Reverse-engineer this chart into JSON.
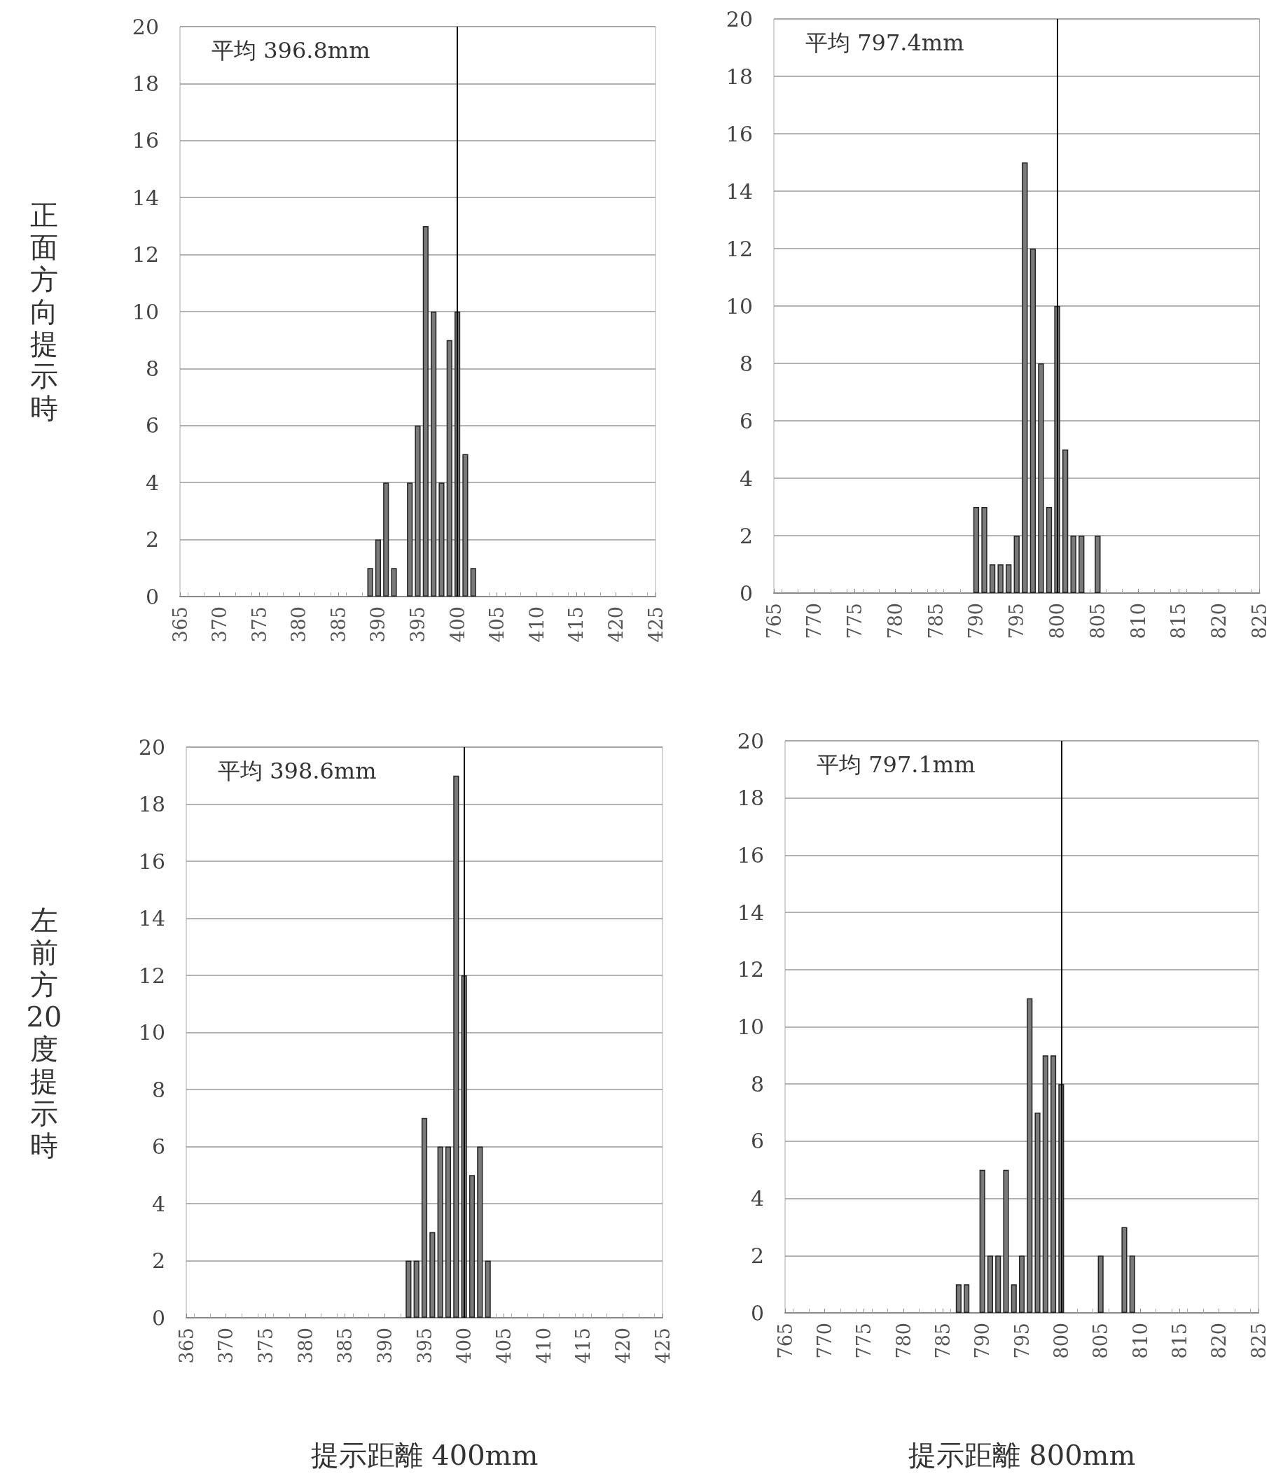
{
  "chart_data": [
    {
      "type": "bar",
      "ylabel": "正面方向提示時",
      "annotations": [
        "平均 396.8mm"
      ],
      "x": [
        389,
        390,
        391,
        392,
        394,
        395,
        396,
        397,
        398,
        399,
        400,
        401,
        402
      ],
      "series": [
        {
          "color": "#7a7a7a",
          "values": [
            1,
            2,
            4,
            1,
            4,
            6,
            13,
            10,
            4,
            9,
            10,
            5,
            1
          ]
        }
      ],
      "xlim": [
        365,
        425
      ],
      "xticks": [
        365,
        370,
        375,
        380,
        385,
        390,
        395,
        400,
        405,
        410,
        415,
        420,
        425
      ],
      "ylim": [
        0,
        20
      ],
      "yticks": [
        0,
        2,
        4,
        6,
        8,
        10,
        12,
        14,
        16,
        18,
        20
      ],
      "grid": "y",
      "ref_lines": [
        {
          "axis": "x",
          "value": 400,
          "color": "#000000"
        }
      ]
    },
    {
      "type": "bar",
      "annotations": [
        "平均 797.4mm"
      ],
      "x": [
        790,
        791,
        792,
        793,
        794,
        795,
        796,
        797,
        798,
        799,
        800,
        801,
        802,
        803,
        805
      ],
      "series": [
        {
          "color": "#7a7a7a",
          "values": [
            3,
            3,
            1,
            1,
            1,
            2,
            15,
            12,
            8,
            3,
            10,
            5,
            2,
            2,
            2
          ]
        }
      ],
      "xlim": [
        765,
        825
      ],
      "xticks": [
        765,
        770,
        775,
        780,
        785,
        790,
        795,
        800,
        805,
        810,
        815,
        820,
        825
      ],
      "ylim": [
        0,
        20
      ],
      "yticks": [
        0,
        2,
        4,
        6,
        8,
        10,
        12,
        14,
        16,
        18,
        20
      ],
      "grid": "y",
      "ref_lines": [
        {
          "axis": "x",
          "value": 800,
          "color": "#000000"
        }
      ]
    },
    {
      "type": "bar",
      "ylabel": "左前方20度提示時",
      "xlabel": "提示距離 400mm",
      "annotations": [
        "平均 398.6mm"
      ],
      "x": [
        393,
        394,
        395,
        396,
        397,
        398,
        399,
        400,
        401,
        402,
        403
      ],
      "series": [
        {
          "color": "#7a7a7a",
          "values": [
            2,
            2,
            7,
            3,
            6,
            6,
            19,
            12,
            5,
            6,
            2
          ]
        }
      ],
      "xlim": [
        365,
        425
      ],
      "xticks": [
        365,
        370,
        375,
        380,
        385,
        390,
        395,
        400,
        405,
        410,
        415,
        420,
        425
      ],
      "ylim": [
        0,
        20
      ],
      "yticks": [
        0,
        2,
        4,
        6,
        8,
        10,
        12,
        14,
        16,
        18,
        20
      ],
      "grid": "y",
      "ref_lines": [
        {
          "axis": "x",
          "value": 400,
          "color": "#000000"
        }
      ]
    },
    {
      "type": "bar",
      "xlabel": "提示距離 800mm",
      "annotations": [
        "平均 797.1mm"
      ],
      "x": [
        787,
        788,
        790,
        791,
        792,
        793,
        794,
        795,
        796,
        797,
        798,
        799,
        800,
        805,
        808,
        809
      ],
      "series": [
        {
          "color": "#7a7a7a",
          "values": [
            1,
            1,
            5,
            2,
            2,
            5,
            1,
            2,
            11,
            7,
            9,
            9,
            8,
            2,
            3,
            2
          ]
        }
      ],
      "xlim": [
        765,
        825
      ],
      "xticks": [
        765,
        770,
        775,
        780,
        785,
        790,
        795,
        800,
        805,
        810,
        815,
        820,
        825
      ],
      "ylim": [
        0,
        20
      ],
      "yticks": [
        0,
        2,
        4,
        6,
        8,
        10,
        12,
        14,
        16,
        18,
        20
      ],
      "grid": "y",
      "ref_lines": [
        {
          "axis": "x",
          "value": 800,
          "color": "#000000"
        }
      ]
    }
  ]
}
